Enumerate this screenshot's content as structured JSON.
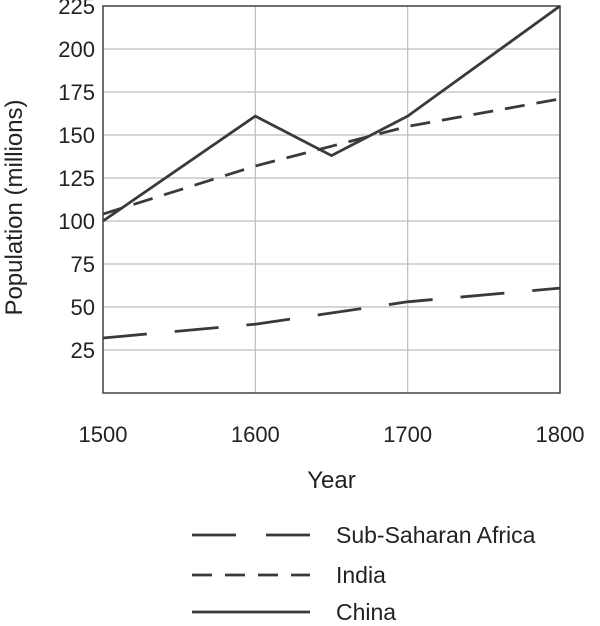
{
  "chart_data": {
    "type": "line",
    "title": "",
    "xlabel": "Year",
    "ylabel": "Population (millions)",
    "xlim": [
      1500,
      1800
    ],
    "ylim": [
      0,
      225
    ],
    "x_ticks": [
      1500,
      1600,
      1700,
      1800
    ],
    "y_ticks": [
      25,
      50,
      75,
      100,
      125,
      150,
      175,
      200,
      225
    ],
    "grid": true,
    "legend_position": "bottom",
    "series": [
      {
        "name": "Sub-Saharan Africa",
        "style": "long-dash",
        "color": "#3a3a3a",
        "points": [
          [
            1500,
            32
          ],
          [
            1600,
            40
          ],
          [
            1700,
            53
          ],
          [
            1800,
            61
          ]
        ]
      },
      {
        "name": "India",
        "style": "dash",
        "color": "#3a3a3a",
        "points": [
          [
            1500,
            104
          ],
          [
            1600,
            132
          ],
          [
            1700,
            155
          ],
          [
            1800,
            171
          ]
        ]
      },
      {
        "name": "China",
        "style": "solid",
        "color": "#3a3a3a",
        "points": [
          [
            1500,
            100
          ],
          [
            1600,
            161
          ],
          [
            1650,
            138
          ],
          [
            1700,
            161
          ],
          [
            1800,
            225
          ]
        ]
      }
    ]
  }
}
